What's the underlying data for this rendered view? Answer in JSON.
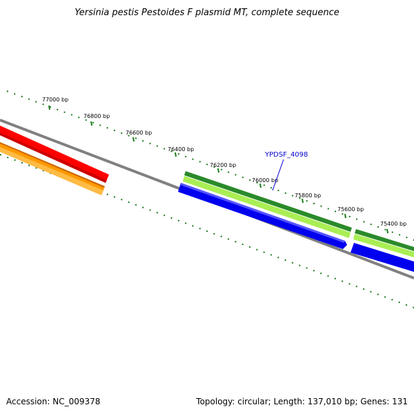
{
  "title": "Yersinia pestis Pestoides F plasmid MT, complete sequence",
  "ticks": [
    {
      "label": "77000 bp"
    },
    {
      "label": "76800 bp"
    },
    {
      "label": "76600 bp"
    },
    {
      "label": "76400 bp"
    },
    {
      "label": "76200 bp"
    },
    {
      "label": "76000 bp"
    },
    {
      "label": "75800 bp"
    },
    {
      "label": "75600 bp"
    },
    {
      "label": "75400 bp"
    }
  ],
  "gene_label": "YPDSF_4098",
  "colors": {
    "backbone": "#808080",
    "tick": "#1a7a1a",
    "red_track": "#ff0000",
    "orange_track": "#ff9900",
    "dark_green_track": "#2a8a2a",
    "light_green_track": "#aaee55",
    "blue_track": "#0000ee",
    "label": "#0000cc"
  },
  "footer": {
    "accession": "Accession: NC_009378",
    "stats": "Topology: circular; Length: 137,010 bp; Genes: 131"
  }
}
